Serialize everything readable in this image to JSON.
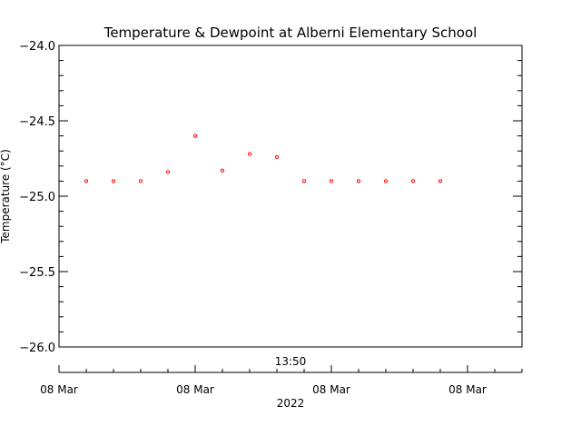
{
  "chart_data": {
    "type": "scatter",
    "title": "Temperature & Dewpoint at Alberni Elementary School",
    "ylabel": "Temperature (°C)",
    "ylim": [
      -26.0,
      -24.0
    ],
    "y_major_ticks": [
      -26.0,
      -25.5,
      -25.0,
      -24.5,
      -24.0
    ],
    "y_tick_labels": [
      "−26.0",
      "−25.5",
      "−25.0",
      "−24.5",
      "−24.0"
    ],
    "y_minor_step": 0.1,
    "xlim": [
      0,
      17
    ],
    "x_major_ticks": [
      0,
      5,
      10,
      15
    ],
    "x_tick_labels": [
      "08 Mar",
      "08 Mar",
      "08 Mar",
      "08 Mar"
    ],
    "x_time_label": "13:50",
    "x_year_label": "2022",
    "grid": false,
    "series": [
      {
        "color": "#ff0000",
        "x": [
          1,
          2,
          3,
          4,
          5,
          6,
          7,
          8,
          9,
          10,
          11,
          12,
          13,
          14
        ],
        "values": [
          -24.9,
          -24.9,
          -24.9,
          -24.84,
          -24.6,
          -24.83,
          -24.72,
          -24.74,
          -24.9,
          -24.9,
          -24.9,
          -24.9,
          -24.9,
          -24.9
        ]
      }
    ]
  }
}
